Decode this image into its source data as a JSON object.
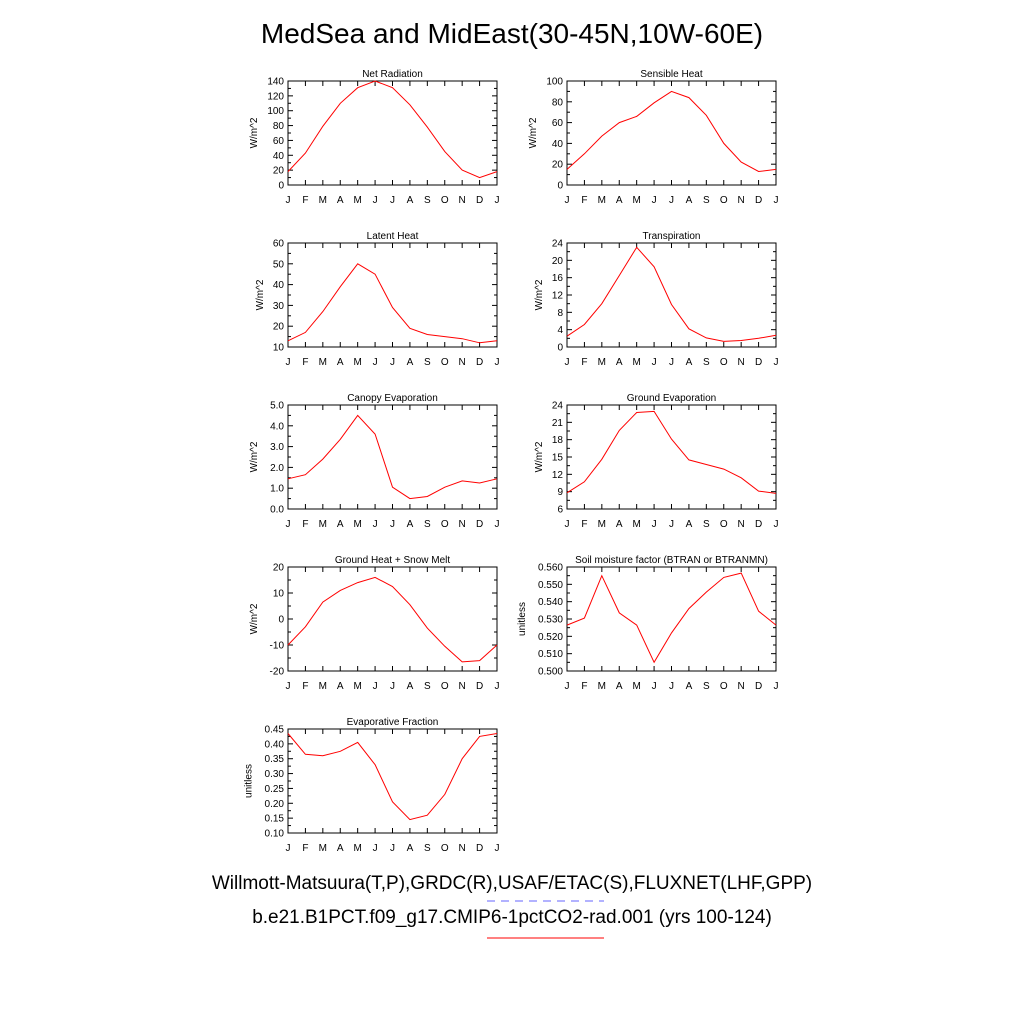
{
  "figure": {
    "title": "MedSea and MidEast(30-45N,10W-60E)",
    "caption_obs": "Willmott-Matsuura(T,P),GRDC(R),USAF/ETAC(S),FLUXNET(LHF,GPP)",
    "caption_model": "b.e21.B1PCT.f09_g17.CMIP6-1pctCO2-rad.001 (yrs 100-124)",
    "colors": {
      "model_line": "#ff0000",
      "obs_dash": "#6666ff",
      "axes": "#000000"
    }
  },
  "chart_data": [
    {
      "type": "line",
      "title": "Net Radiation",
      "ylabel": "W/m^2",
      "x": [
        "J",
        "F",
        "M",
        "A",
        "M",
        "J",
        "J",
        "A",
        "S",
        "O",
        "N",
        "D",
        "J"
      ],
      "ylim": [
        0,
        140
      ],
      "yticks": [
        0,
        20,
        40,
        60,
        80,
        100,
        120,
        140
      ],
      "ytick_labels": [
        "0",
        "20",
        "40",
        "60",
        "80",
        "100",
        "120",
        "140"
      ],
      "series": [
        {
          "values": [
            18,
            43,
            79,
            110,
            131,
            140,
            131,
            108,
            78,
            45,
            20,
            10,
            18
          ]
        }
      ]
    },
    {
      "type": "line",
      "title": "Sensible Heat",
      "ylabel": "W/m^2",
      "x": [
        "J",
        "F",
        "M",
        "A",
        "M",
        "J",
        "J",
        "A",
        "S",
        "O",
        "N",
        "D",
        "J"
      ],
      "ylim": [
        0,
        100
      ],
      "yticks": [
        0,
        20,
        40,
        60,
        80,
        100
      ],
      "ytick_labels": [
        "0",
        "20",
        "40",
        "60",
        "80",
        "100"
      ],
      "series": [
        {
          "values": [
            15,
            30,
            47,
            60,
            66,
            79,
            90,
            84,
            67,
            40,
            22,
            13,
            15
          ]
        }
      ]
    },
    {
      "type": "line",
      "title": "Latent Heat",
      "ylabel": "W/m^2",
      "x": [
        "J",
        "F",
        "M",
        "A",
        "M",
        "J",
        "J",
        "A",
        "S",
        "O",
        "N",
        "D",
        "J"
      ],
      "ylim": [
        10,
        60
      ],
      "yticks": [
        10,
        20,
        30,
        40,
        50,
        60
      ],
      "ytick_labels": [
        "10",
        "20",
        "30",
        "40",
        "50",
        "60"
      ],
      "series": [
        {
          "values": [
            13,
            17,
            27,
            39,
            50,
            45,
            29,
            19,
            16,
            15,
            14,
            12,
            13
          ]
        }
      ]
    },
    {
      "type": "line",
      "title": "Transpiration",
      "ylabel": "W/m^2",
      "x": [
        "J",
        "F",
        "M",
        "A",
        "M",
        "J",
        "J",
        "A",
        "S",
        "O",
        "N",
        "D",
        "J"
      ],
      "ylim": [
        0,
        24
      ],
      "yticks": [
        0,
        4,
        8,
        12,
        16,
        20,
        24
      ],
      "ytick_labels": [
        "0",
        "4",
        "8",
        "12",
        "16",
        "20",
        "24"
      ],
      "series": [
        {
          "values": [
            2.5,
            5.2,
            10,
            16.5,
            23,
            18.5,
            9.8,
            4.2,
            2.1,
            1.3,
            1.5,
            2.0,
            2.7
          ]
        }
      ]
    },
    {
      "type": "line",
      "title": "Canopy Evaporation",
      "ylabel": "W/m^2",
      "x": [
        "J",
        "F",
        "M",
        "A",
        "M",
        "J",
        "J",
        "A",
        "S",
        "O",
        "N",
        "D",
        "J"
      ],
      "ylim": [
        0,
        5
      ],
      "yticks": [
        0,
        1,
        2,
        3,
        4,
        5
      ],
      "ytick_labels": [
        "0.0",
        "1.0",
        "2.0",
        "3.0",
        "4.0",
        "5.0"
      ],
      "series": [
        {
          "values": [
            1.45,
            1.65,
            2.4,
            3.35,
            4.5,
            3.6,
            1.05,
            0.5,
            0.6,
            1.05,
            1.35,
            1.25,
            1.45
          ]
        }
      ]
    },
    {
      "type": "line",
      "title": "Ground Evaporation",
      "ylabel": "W/m^2",
      "x": [
        "J",
        "F",
        "M",
        "A",
        "M",
        "J",
        "J",
        "A",
        "S",
        "O",
        "N",
        "D",
        "J"
      ],
      "ylim": [
        6,
        24
      ],
      "yticks": [
        6,
        9,
        12,
        15,
        18,
        21,
        24
      ],
      "ytick_labels": [
        "6",
        "9",
        "12",
        "15",
        "18",
        "21",
        "24"
      ],
      "series": [
        {
          "values": [
            8.8,
            10.7,
            14.6,
            19.6,
            22.7,
            22.9,
            18.1,
            14.5,
            13.7,
            12.9,
            11.4,
            9.1,
            8.7
          ]
        }
      ]
    },
    {
      "type": "line",
      "title": "Ground Heat + Snow Melt",
      "ylabel": "W/m^2",
      "x": [
        "J",
        "F",
        "M",
        "A",
        "M",
        "J",
        "J",
        "A",
        "S",
        "O",
        "N",
        "D",
        "J"
      ],
      "ylim": [
        -20,
        20
      ],
      "yticks": [
        -20,
        -10,
        0,
        10,
        20
      ],
      "ytick_labels": [
        "-20",
        "-10",
        "0",
        "10",
        "20"
      ],
      "series": [
        {
          "values": [
            -10,
            -3,
            6.5,
            11,
            14,
            16,
            12.5,
            5.5,
            -3.5,
            -10.5,
            -16.5,
            -16,
            -10
          ]
        }
      ]
    },
    {
      "type": "line",
      "title": "Soil moisture factor (BTRAN or BTRANMN)",
      "ylabel": "unitless",
      "x": [
        "J",
        "F",
        "M",
        "A",
        "M",
        "J",
        "J",
        "A",
        "S",
        "O",
        "N",
        "D",
        "J"
      ],
      "ylim": [
        0.5,
        0.56
      ],
      "yticks": [
        0.5,
        0.51,
        0.52,
        0.53,
        0.54,
        0.55,
        0.56
      ],
      "ytick_labels": [
        "0.500",
        "0.510",
        "0.520",
        "0.530",
        "0.540",
        "0.550",
        "0.560"
      ],
      "series": [
        {
          "values": [
            0.5265,
            0.5305,
            0.555,
            0.5335,
            0.5265,
            0.505,
            0.522,
            0.536,
            0.5455,
            0.554,
            0.5565,
            0.5345,
            0.5265
          ]
        }
      ]
    },
    {
      "type": "line",
      "title": "Evaporative Fraction",
      "ylabel": "unitless",
      "x": [
        "J",
        "F",
        "M",
        "A",
        "M",
        "J",
        "J",
        "A",
        "S",
        "O",
        "N",
        "D",
        "J"
      ],
      "ylim": [
        0.1,
        0.45
      ],
      "yticks": [
        0.1,
        0.15,
        0.2,
        0.25,
        0.3,
        0.35,
        0.4,
        0.45
      ],
      "ytick_labels": [
        "0.10",
        "0.15",
        "0.20",
        "0.25",
        "0.30",
        "0.35",
        "0.40",
        "0.45"
      ],
      "series": [
        {
          "values": [
            0.435,
            0.365,
            0.36,
            0.375,
            0.405,
            0.33,
            0.205,
            0.145,
            0.16,
            0.23,
            0.35,
            0.425,
            0.435
          ]
        }
      ]
    }
  ]
}
